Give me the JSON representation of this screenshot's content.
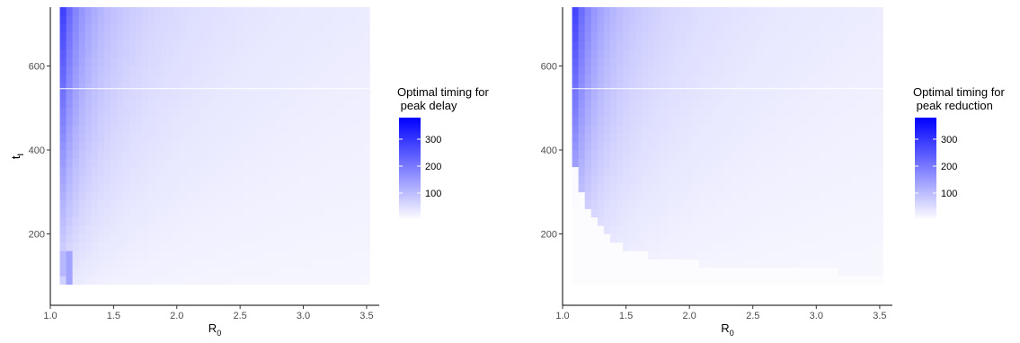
{
  "chart_data": [
    {
      "type": "heatmap",
      "xlabel": "R",
      "xlabel_sub": "0",
      "ylabel": "t",
      "ylabel_sub": "I",
      "xlim": [
        1.0,
        3.6
      ],
      "ylim": [
        30,
        740
      ],
      "x_ticks": [
        1.0,
        1.5,
        2.0,
        2.5,
        3.0,
        3.5
      ],
      "x_tick_labels": [
        "1.0",
        "1.5",
        "2.0",
        "2.5",
        "3.0",
        "3.5"
      ],
      "y_ticks": [
        200,
        400,
        600
      ],
      "y_tick_labels": [
        "200",
        "400",
        "600"
      ],
      "x_range": [
        1.1,
        3.5
      ],
      "x_step": 0.05,
      "y_range": [
        90,
        730
      ],
      "y_step": 20,
      "grid": false,
      "color_low": "#ffffff",
      "color_high": "#0000ff",
      "colorbar_limits": [
        0,
        380
      ],
      "legend": {
        "title_lines": [
          "Optimal timing for",
          " peak delay"
        ],
        "ticks": [
          100,
          200,
          300
        ],
        "tick_labels": [
          "100",
          "200",
          "300"
        ],
        "position": "right"
      }
    },
    {
      "type": "heatmap",
      "xlabel": "R",
      "xlabel_sub": "0",
      "ylabel": "t",
      "ylabel_sub": "I",
      "xlim": [
        1.0,
        3.6
      ],
      "ylim": [
        30,
        740
      ],
      "x_ticks": [
        1.0,
        1.5,
        2.0,
        2.5,
        3.0,
        3.5
      ],
      "x_tick_labels": [
        "1.0",
        "1.5",
        "2.0",
        "2.5",
        "3.0",
        "3.5"
      ],
      "y_ticks": [
        200,
        400,
        600
      ],
      "y_tick_labels": [
        "200",
        "400",
        "600"
      ],
      "x_range": [
        1.1,
        3.5
      ],
      "x_step": 0.05,
      "y_range": [
        90,
        730
      ],
      "y_step": 20,
      "grid": false,
      "color_low": "#ffffff",
      "color_high": "#0000ff",
      "colorbar_limits": [
        0,
        380
      ],
      "legend": {
        "title_lines": [
          "Optimal timing for",
          " peak reduction"
        ],
        "ticks": [
          100,
          200,
          300
        ],
        "tick_labels": [
          "100",
          "200",
          "300"
        ],
        "position": "right"
      }
    }
  ]
}
